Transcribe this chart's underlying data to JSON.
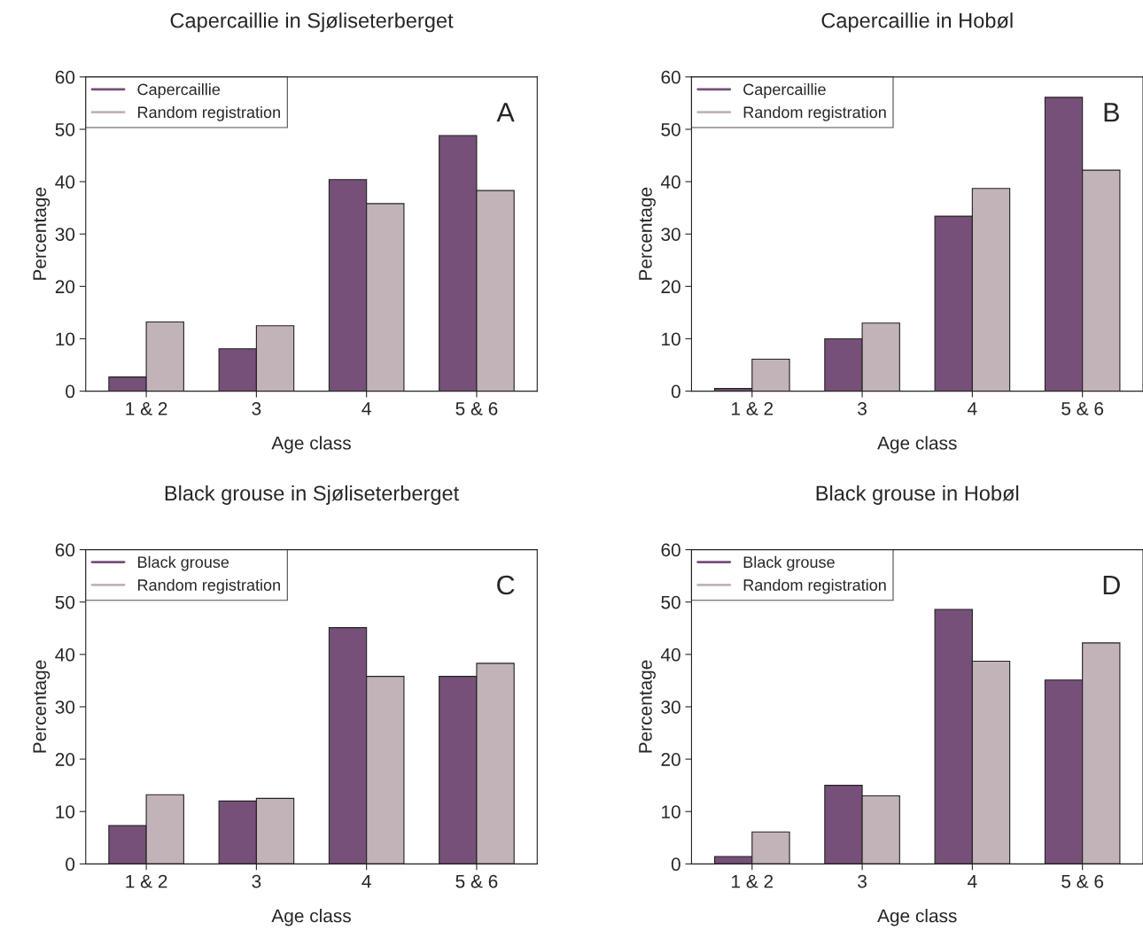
{
  "chart_data": [
    {
      "type": "bar",
      "title": "Capercaillie in Sjøliseterberget",
      "xlabel": "Age class",
      "ylabel": "Percentage",
      "categories": [
        "1 & 2",
        "3",
        "4",
        "5 & 6"
      ],
      "ylim": [
        0,
        60
      ],
      "yticks": [
        0,
        10,
        20,
        30,
        40,
        50,
        60
      ],
      "legend": "top left",
      "grid": false,
      "annotations": [
        "A"
      ],
      "series": [
        {
          "name": "Capercaillie",
          "color": "#765079",
          "values": [
            2.7,
            8.1,
            40.4,
            48.8
          ]
        },
        {
          "name": "Random registration",
          "color": "#c2b3b8",
          "values": [
            13.2,
            12.5,
            35.8,
            38.3
          ]
        }
      ]
    },
    {
      "type": "bar",
      "title": "Capercaillie in Hobøl",
      "xlabel": "Age class",
      "ylabel": "Percentage",
      "categories": [
        "1 & 2",
        "3",
        "4",
        "5 & 6"
      ],
      "ylim": [
        0,
        60
      ],
      "yticks": [
        0,
        10,
        20,
        30,
        40,
        50,
        60
      ],
      "legend": "top left",
      "grid": false,
      "annotations": [
        "B"
      ],
      "series": [
        {
          "name": "Capercaillie",
          "color": "#765079",
          "values": [
            0.5,
            10.0,
            33.4,
            56.1
          ]
        },
        {
          "name": "Random registration",
          "color": "#c2b3b8",
          "values": [
            6.1,
            13.0,
            38.7,
            42.2
          ]
        }
      ]
    },
    {
      "type": "bar",
      "title": "Black grouse in Sjøliseterberget",
      "xlabel": "Age class",
      "ylabel": "Percentage",
      "categories": [
        "1 & 2",
        "3",
        "4",
        "5 & 6"
      ],
      "ylim": [
        0,
        60
      ],
      "yticks": [
        0,
        10,
        20,
        30,
        40,
        50,
        60
      ],
      "legend": "top left",
      "grid": false,
      "annotations": [
        "C"
      ],
      "series": [
        {
          "name": "Black grouse",
          "color": "#765079",
          "values": [
            7.3,
            12.0,
            45.1,
            35.8
          ]
        },
        {
          "name": "Random registration",
          "color": "#c2b3b8",
          "values": [
            13.2,
            12.5,
            35.8,
            38.3
          ]
        }
      ]
    },
    {
      "type": "bar",
      "title": "Black grouse in Hobøl",
      "xlabel": "Age class",
      "ylabel": "Percentage",
      "categories": [
        "1 & 2",
        "3",
        "4",
        "5 & 6"
      ],
      "ylim": [
        0,
        60
      ],
      "yticks": [
        0,
        10,
        20,
        30,
        40,
        50,
        60
      ],
      "legend": "top left",
      "grid": false,
      "annotations": [
        "D"
      ],
      "series": [
        {
          "name": "Black grouse",
          "color": "#765079",
          "values": [
            1.4,
            15.0,
            48.6,
            35.1
          ]
        },
        {
          "name": "Random registration",
          "color": "#c2b3b8",
          "values": [
            6.1,
            13.0,
            38.7,
            42.2
          ]
        }
      ]
    }
  ]
}
